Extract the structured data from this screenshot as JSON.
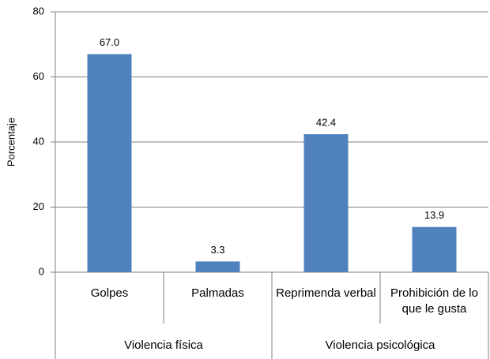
{
  "chart_data": {
    "type": "bar",
    "categories": [
      "Golpes",
      "Palmadas",
      "Reprimenda verbal",
      "Prohibición de lo que le gusta"
    ],
    "groups": [
      {
        "name": "Violencia física",
        "span": 2
      },
      {
        "name": "Violencia psicológica",
        "span": 2
      }
    ],
    "values": [
      67.0,
      3.3,
      42.4,
      13.9
    ],
    "value_labels": [
      "67.0",
      "3.3",
      "42.4",
      "13.9"
    ],
    "color": "#4f81bd",
    "y_label": "Porcentaje",
    "ylim": [
      0,
      80
    ],
    "yticks": [
      0,
      20,
      40,
      60,
      80
    ],
    "grid": true
  }
}
